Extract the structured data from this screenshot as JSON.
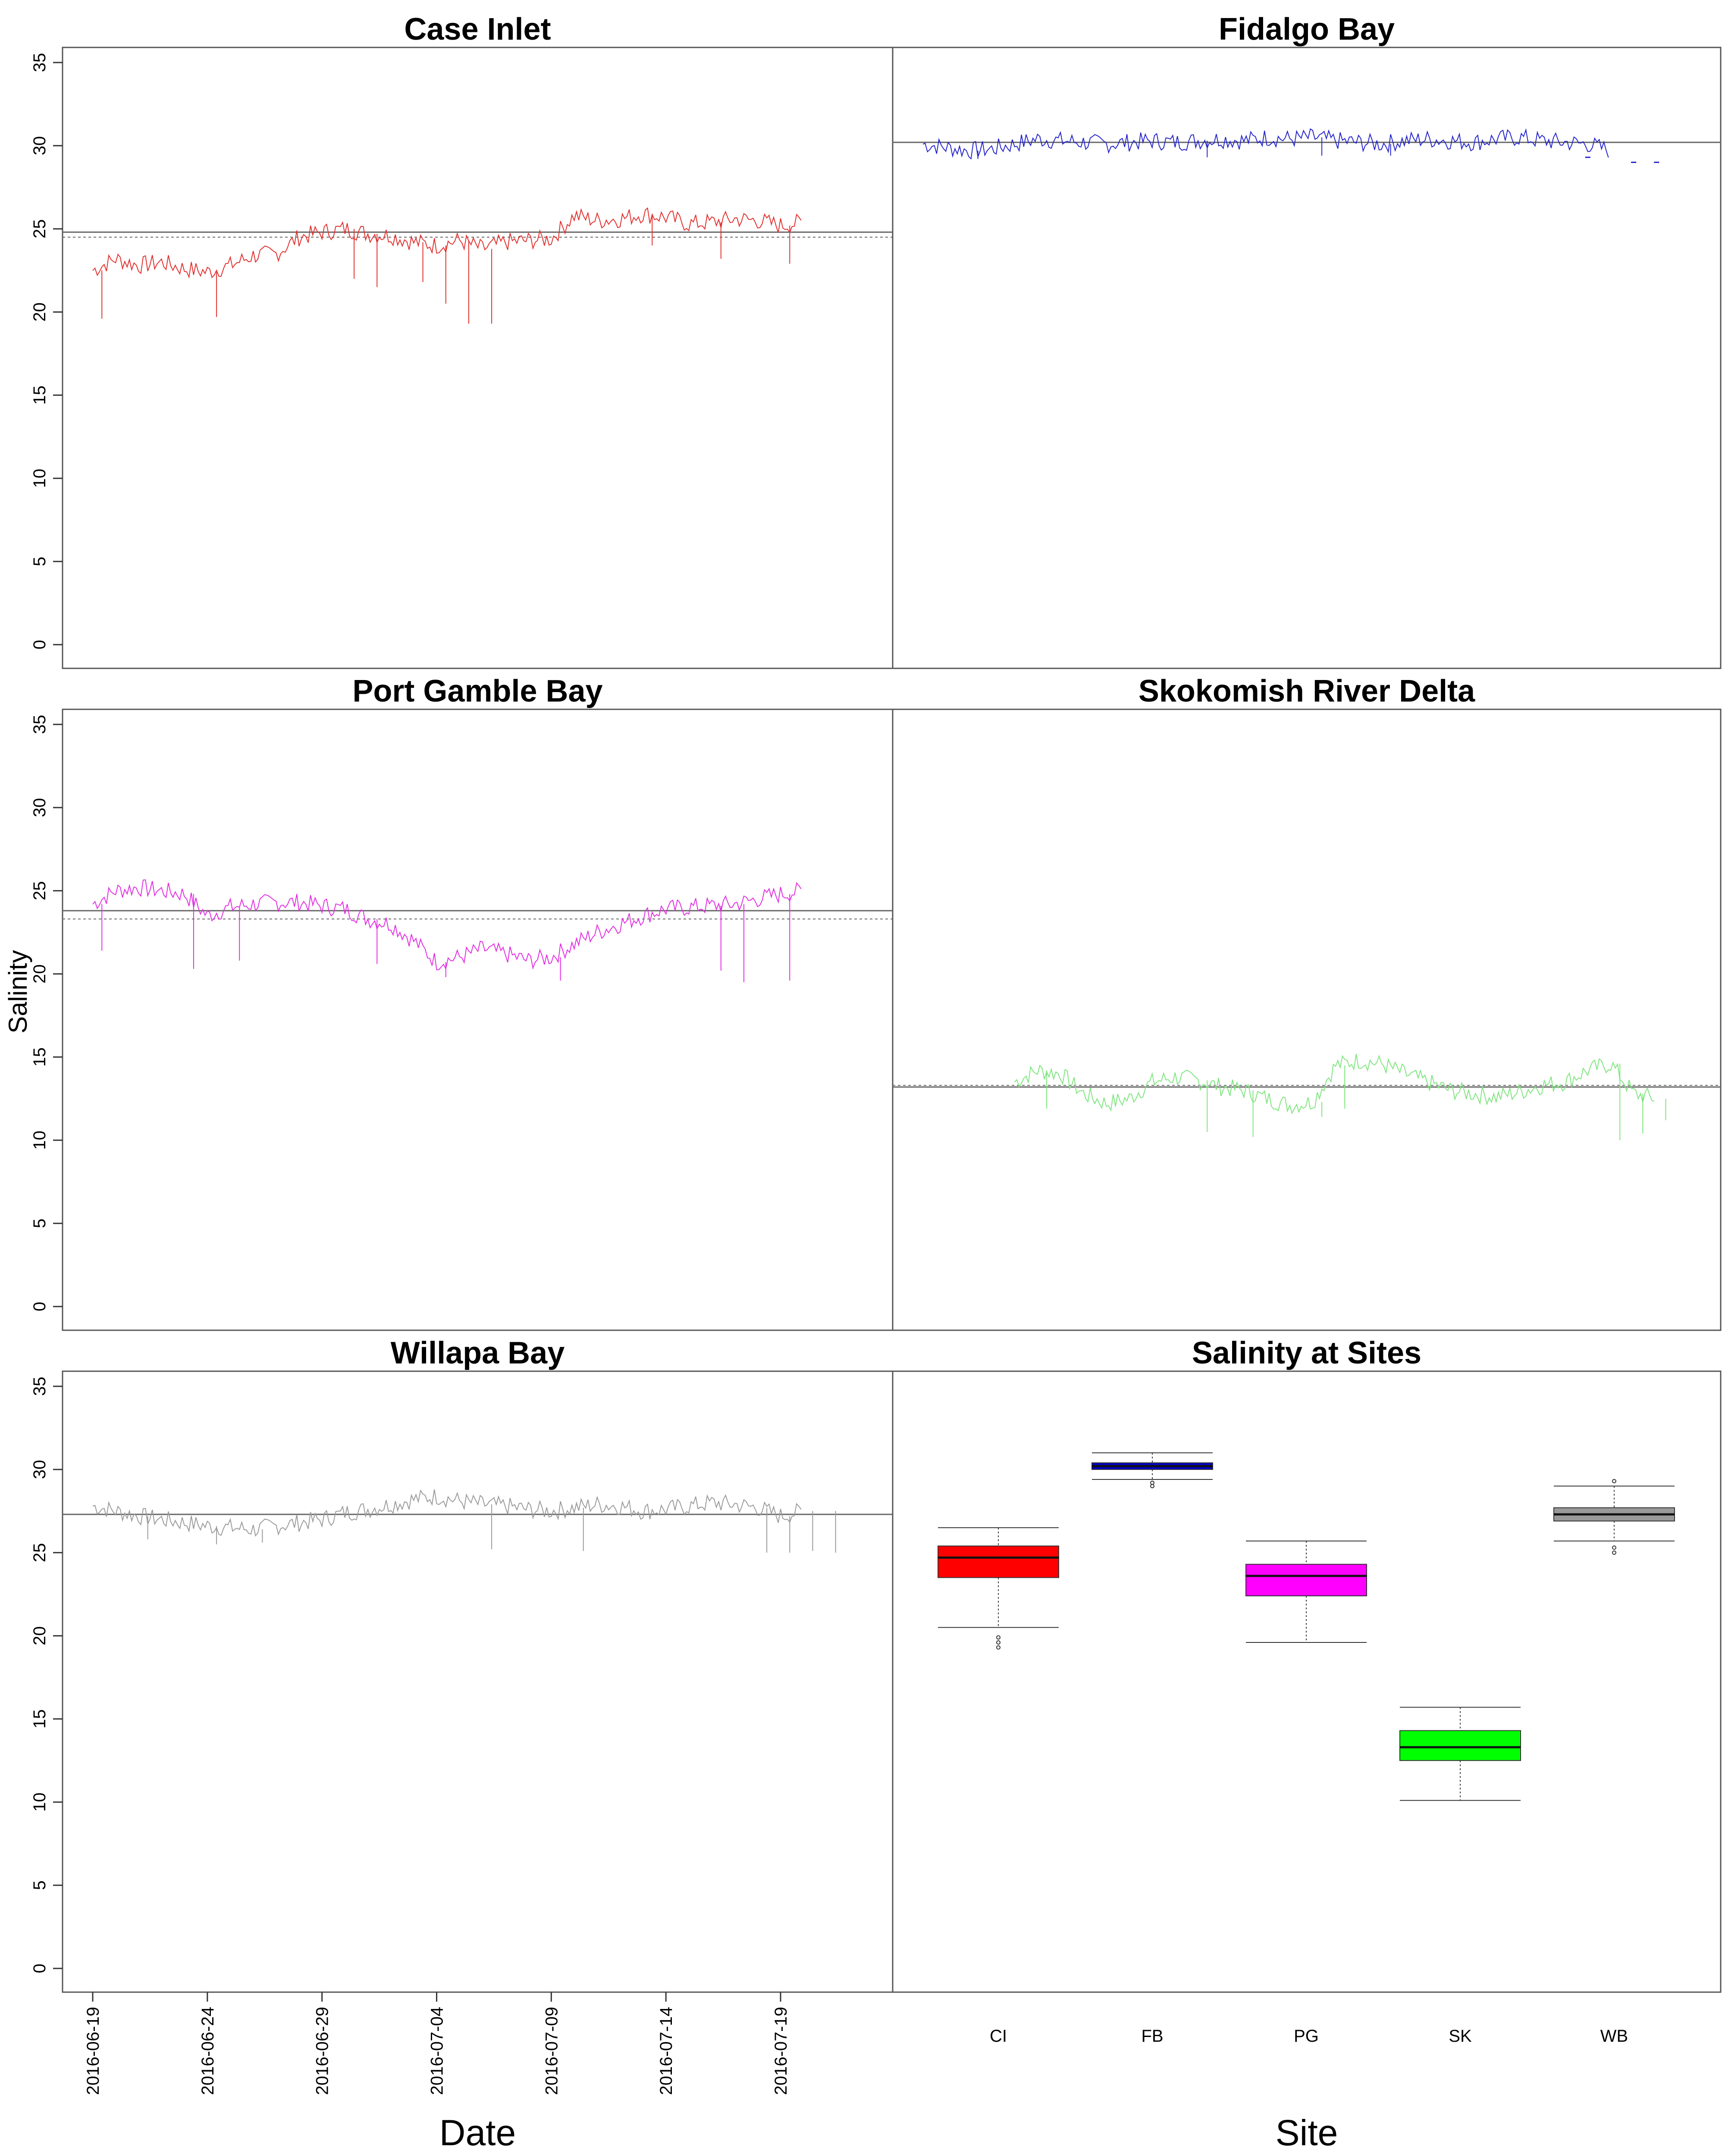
{
  "y_axis_title": "Salinity",
  "chart_data": [
    {
      "type": "line",
      "title": "Case Inlet",
      "color": "#e0302e",
      "ylim": [
        0,
        35
      ],
      "yticks": [
        0,
        5,
        10,
        15,
        20,
        25,
        30,
        35
      ],
      "mean": 24.8,
      "median": 24.5,
      "x": [
        "2016-06-19",
        "2016-06-20",
        "2016-06-21",
        "2016-06-22",
        "2016-06-23",
        "2016-06-24",
        "2016-06-25",
        "2016-06-26",
        "2016-06-27",
        "2016-06-28",
        "2016-06-29",
        "2016-06-30",
        "2016-07-01",
        "2016-07-02",
        "2016-07-03",
        "2016-07-04",
        "2016-07-05",
        "2016-07-06",
        "2016-07-07",
        "2016-07-08",
        "2016-07-09",
        "2016-07-10",
        "2016-07-11",
        "2016-07-12",
        "2016-07-13",
        "2016-07-14",
        "2016-07-15",
        "2016-07-16",
        "2016-07-17",
        "2016-07-18",
        "2016-07-19",
        "2016-07-20"
      ],
      "y": [
        22.5,
        23.2,
        22.8,
        23.0,
        22.6,
        22.4,
        22.8,
        23.4,
        23.5,
        24.5,
        24.8,
        25.0,
        24.7,
        24.6,
        24.2,
        24.0,
        24.3,
        23.8,
        24.2,
        24.3,
        24.4,
        25.8,
        25.5,
        25.6,
        25.9,
        25.7,
        25.3,
        25.4,
        25.6,
        25.5,
        25.2,
        25.4
      ],
      "dips": [
        [
          "2016-06-19",
          19.6
        ],
        [
          "2016-06-24",
          19.7
        ],
        [
          "2016-06-30",
          22.0
        ],
        [
          "2016-07-01",
          21.5
        ],
        [
          "2016-07-03",
          21.8
        ],
        [
          "2016-07-04",
          20.5
        ],
        [
          "2016-07-05",
          19.3
        ],
        [
          "2016-07-06",
          19.3
        ],
        [
          "2016-07-13",
          24.0
        ],
        [
          "2016-07-16",
          23.2
        ],
        [
          "2016-07-19",
          22.9
        ]
      ]
    },
    {
      "type": "line",
      "title": "Fidalgo Bay",
      "color": "#2323cc",
      "ylim": [
        0,
        35
      ],
      "mean": 30.2,
      "median": 30.2,
      "x": [
        "2016-06-19",
        "2016-06-20",
        "2016-06-21",
        "2016-06-22",
        "2016-06-23",
        "2016-06-24",
        "2016-06-25",
        "2016-06-26",
        "2016-06-27",
        "2016-06-28",
        "2016-06-29",
        "2016-06-30",
        "2016-07-01",
        "2016-07-02",
        "2016-07-03",
        "2016-07-04",
        "2016-07-05",
        "2016-07-06",
        "2016-07-07",
        "2016-07-08",
        "2016-07-09",
        "2016-07-10",
        "2016-07-11",
        "2016-07-12",
        "2016-07-13",
        "2016-07-14",
        "2016-07-15",
        "2016-07-16",
        "2016-07-17",
        "2016-07-18",
        "2016-07-19"
      ],
      "y": [
        30.1,
        29.9,
        29.7,
        29.8,
        30.1,
        30.4,
        30.3,
        30.2,
        30.1,
        30.2,
        30.3,
        30.2,
        30.3,
        30.4,
        30.3,
        30.5,
        30.4,
        30.5,
        30.3,
        30.2,
        30.1,
        30.3,
        30.4,
        30.3,
        30.2,
        30.4,
        30.5,
        30.3,
        30.2,
        30.1,
        29.7
      ],
      "dips": [
        [
          "2016-06-21",
          29.2
        ],
        [
          "2016-07-01",
          29.3
        ],
        [
          "2016-07-06",
          29.4
        ],
        [
          "2016-07-09",
          29.4
        ]
      ],
      "sparse_points": [
        [
          "2016-07-18",
          29.3
        ],
        [
          "2016-07-20",
          29.0
        ],
        [
          "2016-07-21",
          29.0
        ]
      ]
    },
    {
      "type": "line",
      "title": "Port Gamble Bay",
      "color": "#e22ee2",
      "ylim": [
        0,
        35
      ],
      "mean": 23.8,
      "median": 23.3,
      "x": [
        "2016-06-19",
        "2016-06-20",
        "2016-06-21",
        "2016-06-22",
        "2016-06-23",
        "2016-06-24",
        "2016-06-25",
        "2016-06-26",
        "2016-06-27",
        "2016-06-28",
        "2016-06-29",
        "2016-06-30",
        "2016-07-01",
        "2016-07-02",
        "2016-07-03",
        "2016-07-04",
        "2016-07-05",
        "2016-07-06",
        "2016-07-07",
        "2016-07-08",
        "2016-07-09",
        "2016-07-10",
        "2016-07-11",
        "2016-07-12",
        "2016-07-13",
        "2016-07-14",
        "2016-07-15",
        "2016-07-16",
        "2016-07-17",
        "2016-07-18",
        "2016-07-19",
        "2016-07-20"
      ],
      "y": [
        24.2,
        25.0,
        25.2,
        25.0,
        24.8,
        23.5,
        24.0,
        24.2,
        24.3,
        24.3,
        24.1,
        23.9,
        23.3,
        23.0,
        22.0,
        20.7,
        21.0,
        21.5,
        21.2,
        20.8,
        21.0,
        21.8,
        22.5,
        23.0,
        23.5,
        23.9,
        24.0,
        24.1,
        24.2,
        24.5,
        24.8,
        25.0
      ],
      "dips": [
        [
          "2016-06-19",
          21.4
        ],
        [
          "2016-06-23",
          20.3
        ],
        [
          "2016-06-25",
          20.8
        ],
        [
          "2016-07-01",
          20.6
        ],
        [
          "2016-07-04",
          19.8
        ],
        [
          "2016-07-09",
          19.6
        ],
        [
          "2016-07-16",
          20.2
        ],
        [
          "2016-07-17",
          19.5
        ],
        [
          "2016-07-19",
          19.6
        ]
      ]
    },
    {
      "type": "line",
      "title": "Skokomish River Delta",
      "color": "#7ee57e",
      "ylim": [
        0,
        35
      ],
      "mean": 13.2,
      "median": 13.3,
      "x": [
        "2016-06-23",
        "2016-06-24",
        "2016-06-25",
        "2016-06-26",
        "2016-06-27",
        "2016-06-28",
        "2016-06-29",
        "2016-06-30",
        "2016-07-01",
        "2016-07-02",
        "2016-07-03",
        "2016-07-04",
        "2016-07-05",
        "2016-07-06",
        "2016-07-07",
        "2016-07-08",
        "2016-07-09",
        "2016-07-10",
        "2016-07-11",
        "2016-07-12",
        "2016-07-13",
        "2016-07-14",
        "2016-07-15",
        "2016-07-16",
        "2016-07-17",
        "2016-07-18",
        "2016-07-19",
        "2016-07-20",
        "2016-07-21"
      ],
      "y": [
        13.5,
        14.2,
        14.0,
        12.8,
        12.2,
        12.5,
        13.5,
        13.8,
        13.6,
        13.2,
        13.0,
        12.5,
        12.1,
        12.3,
        14.5,
        14.8,
        14.6,
        14.0,
        13.5,
        13.0,
        12.8,
        12.6,
        12.9,
        13.3,
        13.5,
        14.2,
        14.6,
        12.8,
        12.5
      ],
      "dips": [
        [
          "2016-06-24",
          11.9
        ],
        [
          "2016-07-01",
          10.5
        ],
        [
          "2016-07-03",
          10.2
        ],
        [
          "2016-07-06",
          11.4
        ],
        [
          "2016-07-07",
          11.9
        ],
        [
          "2016-07-19",
          10.0
        ],
        [
          "2016-07-20",
          10.4
        ],
        [
          "2016-07-21",
          11.2
        ]
      ]
    },
    {
      "type": "line",
      "title": "Willapa Bay",
      "color": "#9a9a9a",
      "ylim": [
        0,
        35
      ],
      "mean": 27.3,
      "median": 27.3,
      "x": [
        "2016-06-19",
        "2016-06-20",
        "2016-06-21",
        "2016-06-22",
        "2016-06-23",
        "2016-06-24",
        "2016-06-25",
        "2016-06-26",
        "2016-06-27",
        "2016-06-28",
        "2016-06-29",
        "2016-06-30",
        "2016-07-01",
        "2016-07-02",
        "2016-07-03",
        "2016-07-04",
        "2016-07-05",
        "2016-07-06",
        "2016-07-07",
        "2016-07-08",
        "2016-07-09",
        "2016-07-10",
        "2016-07-11",
        "2016-07-12",
        "2016-07-13",
        "2016-07-14",
        "2016-07-15",
        "2016-07-16",
        "2016-07-17",
        "2016-07-18",
        "2016-07-19",
        "2016-07-20"
      ],
      "y": [
        27.8,
        27.5,
        27.2,
        27.0,
        26.8,
        26.6,
        26.5,
        26.4,
        26.6,
        26.8,
        27.0,
        27.4,
        27.6,
        27.9,
        28.2,
        28.4,
        28.1,
        27.9,
        27.8,
        27.6,
        27.5,
        27.7,
        27.9,
        27.8,
        27.5,
        27.6,
        27.8,
        28.0,
        27.9,
        27.7,
        27.2,
        27.5
      ],
      "dips": [
        [
          "2016-06-21",
          25.8
        ],
        [
          "2016-06-24",
          25.5
        ],
        [
          "2016-06-26",
          25.6
        ],
        [
          "2016-07-06",
          25.2
        ],
        [
          "2016-07-10",
          25.1
        ],
        [
          "2016-07-18",
          25.0
        ],
        [
          "2016-07-19",
          25.0
        ],
        [
          "2016-07-20",
          25.1
        ],
        [
          "2016-07-21",
          25.0
        ]
      ],
      "xticks": [
        "2016-06-19",
        "2016-06-24",
        "2016-06-29",
        "2016-07-04",
        "2016-07-09",
        "2016-07-14",
        "2016-07-19"
      ],
      "xlabel": "Date"
    },
    {
      "type": "box",
      "title": "Salinity at Sites",
      "xlabel": "Site",
      "ylim": [
        0,
        35
      ],
      "categories": [
        "CI",
        "FB",
        "PG",
        "SK",
        "WB"
      ],
      "colors": [
        "#ff0000",
        "#0000cc",
        "#ff00ff",
        "#00ff00",
        "#999999"
      ],
      "stats": [
        {
          "min": 20.5,
          "q1": 23.5,
          "median": 24.7,
          "q3": 25.4,
          "max": 26.5,
          "outliers": [
            19.3,
            19.6,
            19.9
          ]
        },
        {
          "min": 29.4,
          "q1": 30.0,
          "median": 30.2,
          "q3": 30.4,
          "max": 31.0,
          "outliers": [
            29.0,
            29.2
          ]
        },
        {
          "min": 19.6,
          "q1": 22.4,
          "median": 23.6,
          "q3": 24.3,
          "max": 25.7,
          "outliers": []
        },
        {
          "min": 10.1,
          "q1": 12.5,
          "median": 13.3,
          "q3": 14.3,
          "max": 15.7,
          "outliers": []
        },
        {
          "min": 25.7,
          "q1": 26.9,
          "median": 27.3,
          "q3": 27.7,
          "max": 29.0,
          "outliers": [
            25.0,
            25.3,
            29.3
          ]
        }
      ]
    }
  ]
}
